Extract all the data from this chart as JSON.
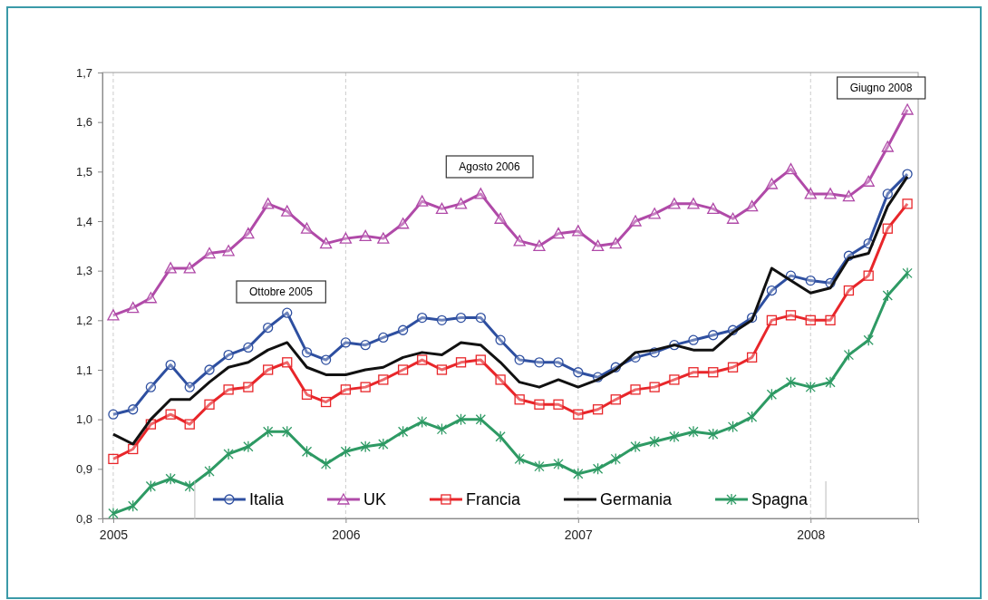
{
  "chart_data": {
    "type": "line",
    "x": [
      "2005-01",
      "2005-02",
      "2005-03",
      "2005-04",
      "2005-05",
      "2005-06",
      "2005-07",
      "2005-08",
      "2005-09",
      "2005-10",
      "2005-11",
      "2005-12",
      "2006-01",
      "2006-02",
      "2006-03",
      "2006-04",
      "2006-05",
      "2006-06",
      "2006-07",
      "2006-08",
      "2006-09",
      "2006-10",
      "2006-11",
      "2006-12",
      "2007-01",
      "2007-02",
      "2007-03",
      "2007-04",
      "2007-05",
      "2007-06",
      "2007-07",
      "2007-08",
      "2007-09",
      "2007-10",
      "2007-11",
      "2007-12",
      "2008-01",
      "2008-02",
      "2008-03",
      "2008-04",
      "2008-05",
      "2008-06"
    ],
    "series": [
      {
        "name": "Italia",
        "color": "#2e4fa0",
        "marker": "circle",
        "values": [
          1.01,
          1.02,
          1.065,
          1.11,
          1.065,
          1.1,
          1.13,
          1.145,
          1.185,
          1.215,
          1.135,
          1.12,
          1.155,
          1.15,
          1.165,
          1.18,
          1.205,
          1.2,
          1.205,
          1.205,
          1.16,
          1.12,
          1.115,
          1.115,
          1.095,
          1.085,
          1.105,
          1.125,
          1.135,
          1.15,
          1.16,
          1.17,
          1.18,
          1.205,
          1.26,
          1.29,
          1.28,
          1.275,
          1.33,
          1.355,
          1.455,
          1.495
        ]
      },
      {
        "name": "UK",
        "color": "#b04aa8",
        "marker": "triangle",
        "values": [
          1.21,
          1.225,
          1.245,
          1.305,
          1.305,
          1.335,
          1.34,
          1.375,
          1.435,
          1.42,
          1.385,
          1.355,
          1.365,
          1.37,
          1.365,
          1.395,
          1.44,
          1.425,
          1.435,
          1.455,
          1.405,
          1.36,
          1.35,
          1.375,
          1.38,
          1.35,
          1.355,
          1.4,
          1.415,
          1.435,
          1.435,
          1.425,
          1.405,
          1.43,
          1.475,
          1.505,
          1.455,
          1.455,
          1.45,
          1.48,
          1.55,
          1.625
        ]
      },
      {
        "name": "Francia",
        "color": "#e8262a",
        "marker": "square",
        "values": [
          0.92,
          0.94,
          0.99,
          1.01,
          0.99,
          1.03,
          1.06,
          1.065,
          1.1,
          1.115,
          1.05,
          1.035,
          1.06,
          1.065,
          1.08,
          1.1,
          1.12,
          1.1,
          1.115,
          1.12,
          1.08,
          1.04,
          1.03,
          1.03,
          1.01,
          1.02,
          1.04,
          1.06,
          1.065,
          1.08,
          1.095,
          1.095,
          1.105,
          1.125,
          1.2,
          1.21,
          1.2,
          1.2,
          1.26,
          1.29,
          1.385,
          1.435
        ]
      },
      {
        "name": "Germania",
        "color": "#111111",
        "marker": "none",
        "values": [
          0.97,
          0.95,
          1.0,
          1.04,
          1.04,
          1.075,
          1.105,
          1.115,
          1.14,
          1.155,
          1.105,
          1.09,
          1.09,
          1.1,
          1.105,
          1.125,
          1.135,
          1.13,
          1.155,
          1.15,
          1.115,
          1.075,
          1.065,
          1.08,
          1.065,
          1.08,
          1.1,
          1.135,
          1.14,
          1.15,
          1.14,
          1.14,
          1.175,
          1.2,
          1.305,
          1.28,
          1.255,
          1.265,
          1.325,
          1.335,
          1.43,
          1.49
        ]
      },
      {
        "name": "Spagna",
        "color": "#2e9a64",
        "marker": "cross",
        "values": [
          0.81,
          0.825,
          0.865,
          0.88,
          0.865,
          0.895,
          0.93,
          0.945,
          0.975,
          0.975,
          0.935,
          0.91,
          0.935,
          0.945,
          0.95,
          0.975,
          0.995,
          0.98,
          1.0,
          1.0,
          0.965,
          0.92,
          0.905,
          0.91,
          0.89,
          0.9,
          0.92,
          0.945,
          0.955,
          0.965,
          0.975,
          0.97,
          0.985,
          1.005,
          1.05,
          1.075,
          1.065,
          1.075,
          1.13,
          1.16,
          1.25,
          1.295
        ]
      }
    ],
    "xlim": [
      "2004-12-15",
      "2008-06-18"
    ],
    "xticks": [
      "2005",
      "2006",
      "2007",
      "2008"
    ],
    "ylim": [
      0.8,
      1.7
    ],
    "yticks": [
      {
        "value": 0.8,
        "label": "0,8"
      },
      {
        "value": 0.9,
        "label": "0,9"
      },
      {
        "value": 1.0,
        "label": "1,0"
      },
      {
        "value": 1.1,
        "label": "1,1"
      },
      {
        "value": 1.2,
        "label": "1,2"
      },
      {
        "value": 1.3,
        "label": "1,3"
      },
      {
        "value": 1.4,
        "label": "1,4"
      },
      {
        "value": 1.5,
        "label": "1,5"
      },
      {
        "value": 1.6,
        "label": "1,6"
      },
      {
        "value": 1.7,
        "label": "1,7"
      }
    ],
    "grid": "x",
    "legend": "bottom",
    "line_style": "solid",
    "annotations": [
      "Ottobre 2005",
      "Agosto 2006",
      "Giugno 2008"
    ]
  }
}
